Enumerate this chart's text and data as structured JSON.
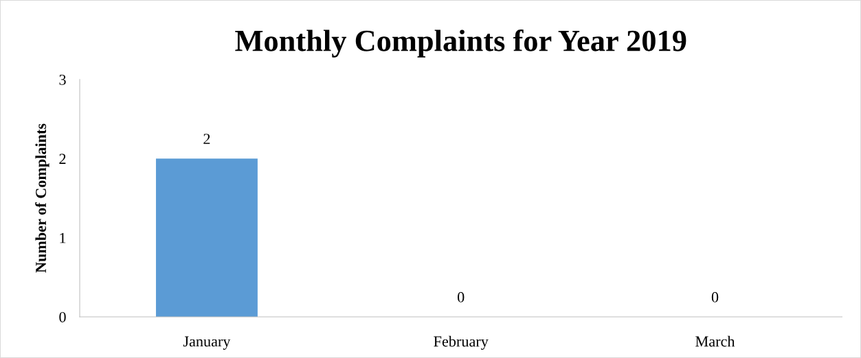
{
  "chart_data": {
    "type": "bar",
    "title": "Monthly Complaints for Year 2019",
    "ylabel": "Number of Complaints",
    "categories": [
      "January",
      "February",
      "March"
    ],
    "series": [
      {
        "color": "#5b9bd5",
        "values": [
          2,
          0,
          0
        ]
      }
    ],
    "ylim": [
      0,
      3
    ],
    "yticks": [
      0,
      1,
      2,
      3
    ],
    "grid": false,
    "data_labels": true
  }
}
